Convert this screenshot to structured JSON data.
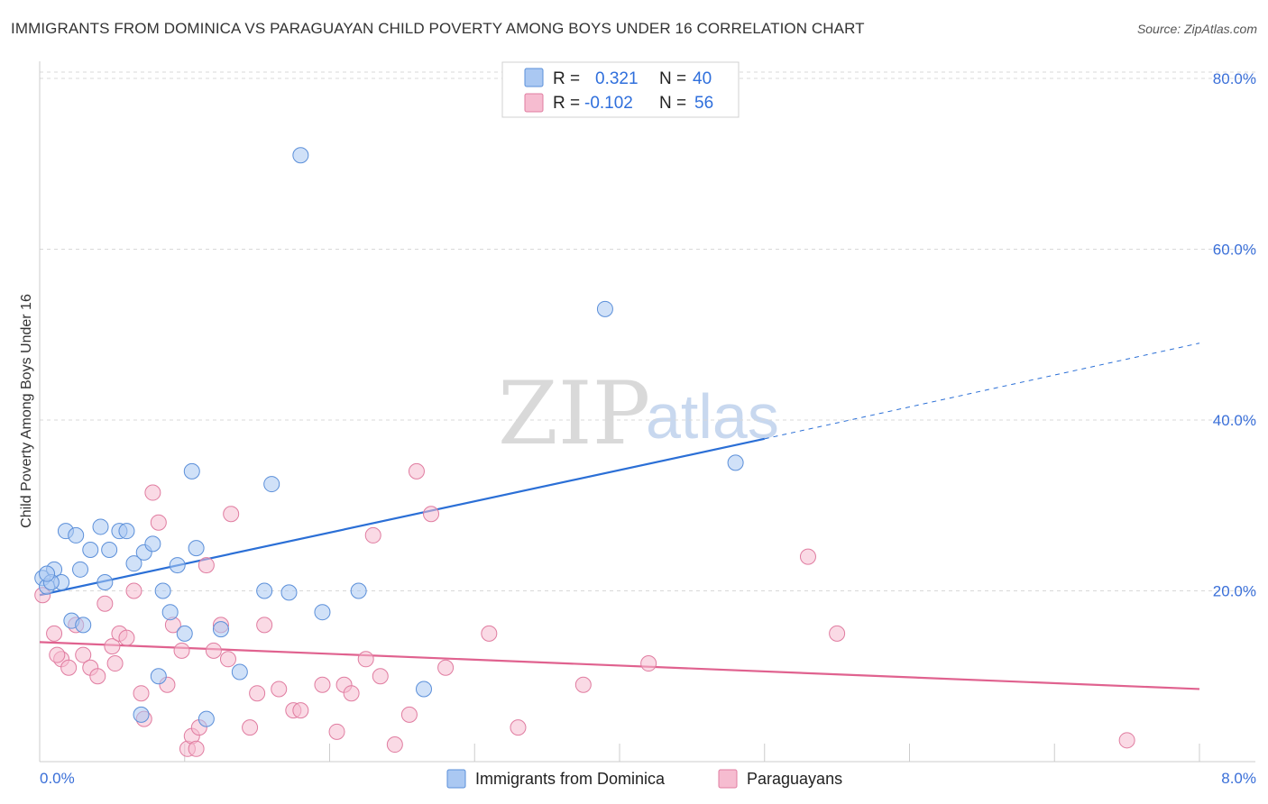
{
  "title": "IMMIGRANTS FROM DOMINICA VS PARAGUAYAN CHILD POVERTY AMONG BOYS UNDER 16 CORRELATION CHART",
  "source": "Source: ZipAtlas.com",
  "watermark": {
    "zip": "ZIP",
    "atlas": "atlas"
  },
  "colors": {
    "blue_fill": "#aac8f2",
    "blue_stroke": "#5b8fd9",
    "blue_line": "#2b6fd6",
    "pink_fill": "#f6bcd0",
    "pink_stroke": "#e07ca0",
    "pink_line": "#e0628f",
    "grid": "#d8d8d8",
    "axis_text": "#3a6fd8"
  },
  "legend": {
    "rows": [
      {
        "r_label": "R =",
        "r_value": "0.321",
        "n_label": "N =",
        "n_value": "40"
      },
      {
        "r_label": "R =",
        "r_value": "-0.102",
        "n_label": "N =",
        "n_value": "56"
      }
    ]
  },
  "chart_data": {
    "type": "scatter",
    "title": "IMMIGRANTS FROM DOMINICA VS PARAGUAYAN CHILD POVERTY AMONG BOYS UNDER 16 CORRELATION CHART",
    "xlabel": "",
    "ylabel": "Child Poverty Among Boys Under 16",
    "xlim": [
      0,
      8
    ],
    "ylim": [
      0,
      80
    ],
    "x_tick_labels": [
      "0.0%",
      "8.0%"
    ],
    "y_tick_labels": [
      "20.0%",
      "40.0%",
      "60.0%",
      "80.0%"
    ],
    "y_ticks": [
      20,
      40,
      60,
      80
    ],
    "series": [
      {
        "name": "Immigrants from Dominica",
        "color": "blue",
        "r": 0.321,
        "n": 40,
        "trend": {
          "x0": 0.0,
          "y0": 19.5,
          "x1": 5.0,
          "y1": 37.8,
          "dash_to_x": 8.0,
          "dash_to_y": 49.0
        },
        "points": [
          [
            0.02,
            21.5
          ],
          [
            0.05,
            20.5
          ],
          [
            0.1,
            22.5
          ],
          [
            0.15,
            21.0
          ],
          [
            0.18,
            27.0
          ],
          [
            0.22,
            16.5
          ],
          [
            0.28,
            22.5
          ],
          [
            0.35,
            24.8
          ],
          [
            0.42,
            27.5
          ],
          [
            0.48,
            24.8
          ],
          [
            0.55,
            27.0
          ],
          [
            0.6,
            27.0
          ],
          [
            0.65,
            23.2
          ],
          [
            0.72,
            24.5
          ],
          [
            0.78,
            25.5
          ],
          [
            0.82,
            10.0
          ],
          [
            0.85,
            20.0
          ],
          [
            0.9,
            17.5
          ],
          [
            0.95,
            23.0
          ],
          [
            1.0,
            15.0
          ],
          [
            1.05,
            34.0
          ],
          [
            1.08,
            25.0
          ],
          [
            1.15,
            5.0
          ],
          [
            1.25,
            15.5
          ],
          [
            1.38,
            10.5
          ],
          [
            1.55,
            20.0
          ],
          [
            1.6,
            32.5
          ],
          [
            1.72,
            19.8
          ],
          [
            1.8,
            71.0
          ],
          [
            1.95,
            17.5
          ],
          [
            2.2,
            20.0
          ],
          [
            2.65,
            8.5
          ],
          [
            3.9,
            53.0
          ],
          [
            4.8,
            35.0
          ],
          [
            0.08,
            21.0
          ],
          [
            0.3,
            16.0
          ],
          [
            0.45,
            21.0
          ],
          [
            0.7,
            5.5
          ],
          [
            0.05,
            22.0
          ],
          [
            0.25,
            26.5
          ]
        ]
      },
      {
        "name": "Paraguayans",
        "color": "pink",
        "r": -0.102,
        "n": 56,
        "trend": {
          "x0": 0.0,
          "y0": 14.0,
          "x1": 8.0,
          "y1": 8.5
        },
        "points": [
          [
            0.02,
            19.5
          ],
          [
            0.1,
            15.0
          ],
          [
            0.15,
            12.0
          ],
          [
            0.2,
            11.0
          ],
          [
            0.25,
            16.0
          ],
          [
            0.3,
            12.5
          ],
          [
            0.35,
            11.0
          ],
          [
            0.4,
            10.0
          ],
          [
            0.45,
            18.5
          ],
          [
            0.5,
            13.5
          ],
          [
            0.55,
            15.0
          ],
          [
            0.6,
            14.5
          ],
          [
            0.65,
            20.0
          ],
          [
            0.7,
            8.0
          ],
          [
            0.72,
            5.0
          ],
          [
            0.78,
            31.5
          ],
          [
            0.82,
            28.0
          ],
          [
            0.88,
            9.0
          ],
          [
            0.92,
            16.0
          ],
          [
            0.98,
            13.0
          ],
          [
            1.02,
            1.5
          ],
          [
            1.05,
            3.0
          ],
          [
            1.1,
            4.0
          ],
          [
            1.15,
            23.0
          ],
          [
            1.2,
            13.0
          ],
          [
            1.25,
            16.0
          ],
          [
            1.3,
            12.0
          ],
          [
            1.32,
            29.0
          ],
          [
            1.45,
            4.0
          ],
          [
            1.5,
            8.0
          ],
          [
            1.55,
            16.0
          ],
          [
            1.65,
            8.5
          ],
          [
            1.75,
            6.0
          ],
          [
            1.8,
            6.0
          ],
          [
            1.95,
            9.0
          ],
          [
            2.05,
            3.5
          ],
          [
            2.1,
            9.0
          ],
          [
            2.15,
            8.0
          ],
          [
            2.25,
            12.0
          ],
          [
            2.3,
            26.5
          ],
          [
            2.35,
            10.0
          ],
          [
            2.45,
            2.0
          ],
          [
            2.55,
            5.5
          ],
          [
            2.6,
            34.0
          ],
          [
            2.7,
            29.0
          ],
          [
            2.8,
            11.0
          ],
          [
            3.1,
            15.0
          ],
          [
            3.3,
            4.0
          ],
          [
            3.75,
            9.0
          ],
          [
            4.2,
            11.5
          ],
          [
            5.3,
            24.0
          ],
          [
            5.5,
            15.0
          ],
          [
            7.5,
            2.5
          ],
          [
            0.12,
            12.5
          ],
          [
            0.52,
            11.5
          ],
          [
            1.08,
            1.5
          ]
        ]
      }
    ]
  }
}
